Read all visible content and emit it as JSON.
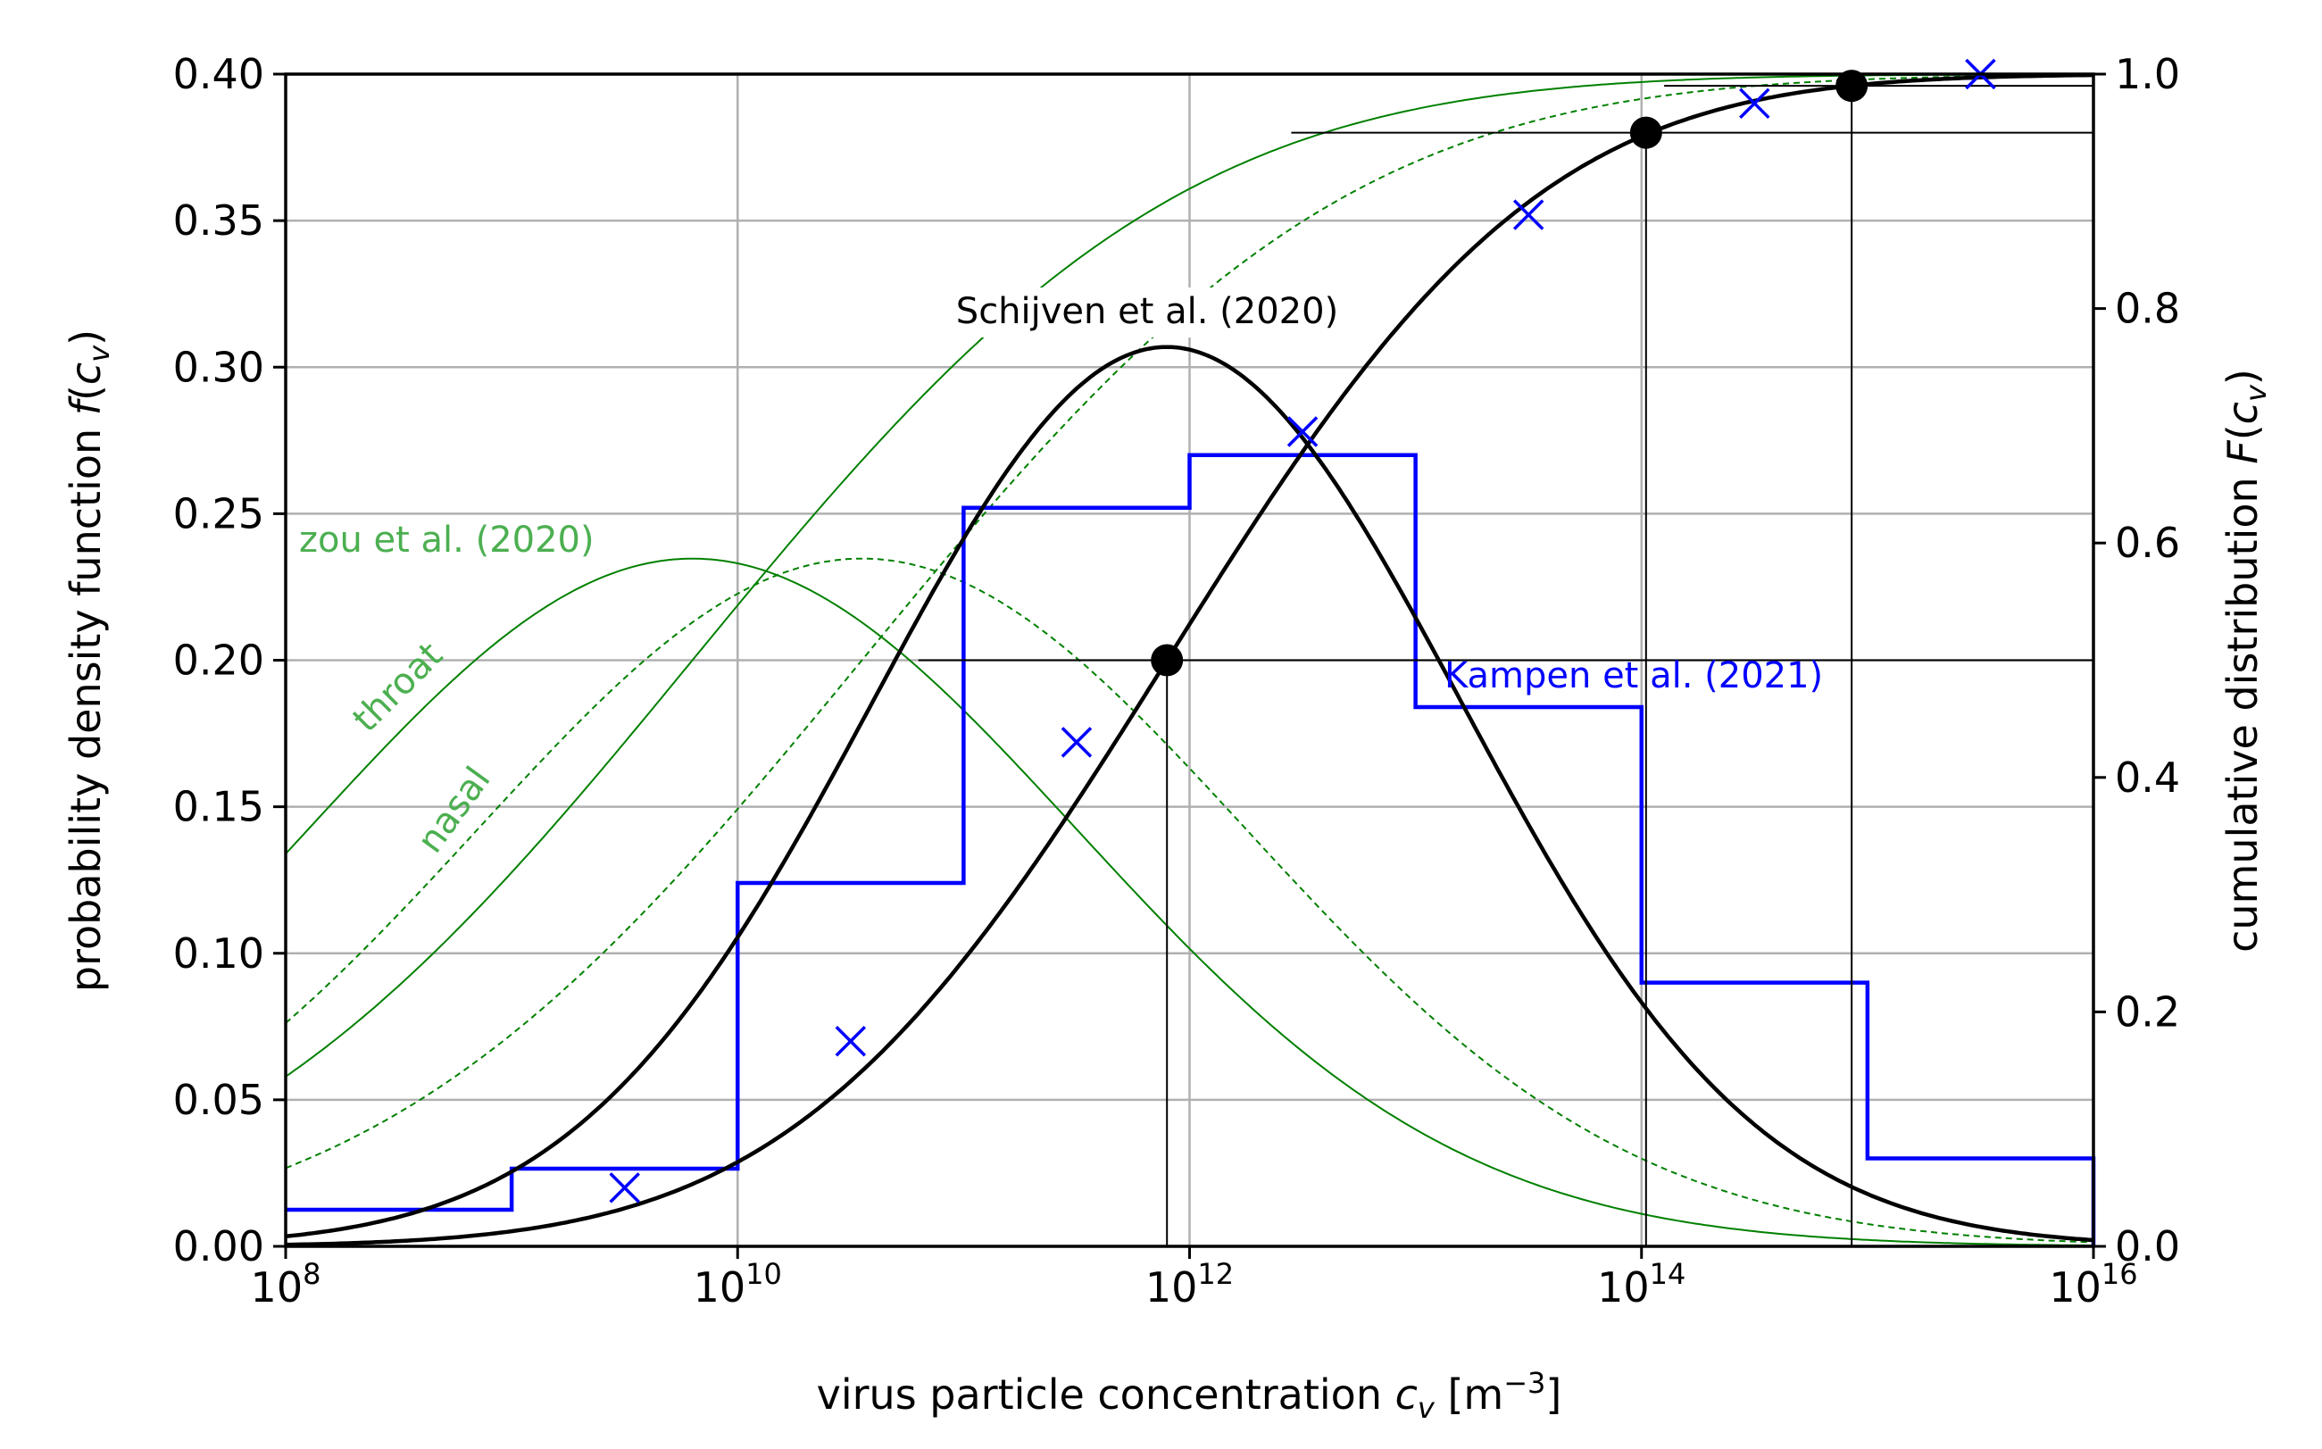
{
  "chart_data": {
    "type": "line",
    "xscale": "log10",
    "xlim_log10": [
      8,
      16
    ],
    "ylim_left": [
      0,
      0.4
    ],
    "ylim_right": [
      0,
      1.0
    ],
    "grid": true,
    "xlabel": "virus particle concentration",
    "xlabel_var": "c",
    "xlabel_sub": "v",
    "xlabel_unit_open": " [m",
    "xlabel_unit_exp": "−3",
    "xlabel_unit_close": "]",
    "ylabel_left": "probability density function ",
    "ylabel_left_var": "f",
    "ylabel_right": "cumulative distribution ",
    "ylabel_right_var": "F",
    "ylabel_arg_open": "(",
    "ylabel_arg_var": "c",
    "ylabel_arg_sub": "v",
    "ylabel_arg_close": ")",
    "x_ticks": [
      {
        "exp": 8,
        "base": "10",
        "sup": "8"
      },
      {
        "exp": 10,
        "base": "10",
        "sup": "10"
      },
      {
        "exp": 12,
        "base": "10",
        "sup": "12"
      },
      {
        "exp": 14,
        "base": "10",
        "sup": "14"
      },
      {
        "exp": 16,
        "base": "10",
        "sup": "16"
      }
    ],
    "y_left_ticks": [
      {
        "value": 0.0,
        "label": "0.00"
      },
      {
        "value": 0.05,
        "label": "0.05"
      },
      {
        "value": 0.1,
        "label": "0.10"
      },
      {
        "value": 0.15,
        "label": "0.15"
      },
      {
        "value": 0.2,
        "label": "0.20"
      },
      {
        "value": 0.25,
        "label": "0.25"
      },
      {
        "value": 0.3,
        "label": "0.30"
      },
      {
        "value": 0.35,
        "label": "0.35"
      },
      {
        "value": 0.4,
        "label": "0.40"
      }
    ],
    "y_right_ticks": [
      {
        "value": 0.0,
        "label": "0.0"
      },
      {
        "value": 0.2,
        "label": "0.2"
      },
      {
        "value": 0.4,
        "label": "0.4"
      },
      {
        "value": 0.6,
        "label": "0.6"
      },
      {
        "value": 0.8,
        "label": "0.8"
      },
      {
        "value": 1.0,
        "label": "1.0"
      }
    ],
    "schijven": {
      "label": "Schijven et al. (2020)",
      "mean_log10": 11.9,
      "sd_log10": 1.3,
      "color": "#000000",
      "cdf_points": [
        {
          "x_log10": 11.9,
          "F": 0.5
        },
        {
          "x_log10": 14.02,
          "F": 0.95
        },
        {
          "x_log10": 14.93,
          "F": 0.99
        }
      ]
    },
    "zou": {
      "label": "zou et al. (2020)",
      "color": "#008000",
      "label_color": "#4caf50",
      "series": [
        {
          "name": "throat",
          "mean_log10": 9.8,
          "sd_log10": 1.7,
          "style": "solid"
        },
        {
          "name": "nasal",
          "mean_log10": 10.55,
          "sd_log10": 1.7,
          "style": "dashed"
        }
      ]
    },
    "kampen": {
      "label": "Kampen et al. (2021)",
      "color": "#0000ff",
      "bins": [
        {
          "from": 8,
          "to": 9,
          "f": 0.0125
        },
        {
          "from": 9,
          "to": 10,
          "f": 0.0265
        },
        {
          "from": 10,
          "to": 11,
          "f": 0.124
        },
        {
          "from": 11,
          "to": 12,
          "f": 0.252
        },
        {
          "from": 12,
          "to": 13,
          "f": 0.27
        },
        {
          "from": 13,
          "to": 14,
          "f": 0.184
        },
        {
          "from": 14,
          "to": 15,
          "f": 0.09
        },
        {
          "from": 15,
          "to": 16,
          "f": 0.03
        }
      ],
      "cdf_points": [
        {
          "x_log10": 9.5,
          "F": 0.05
        },
        {
          "x_log10": 10.5,
          "F": 0.175
        },
        {
          "x_log10": 11.5,
          "F": 0.43
        },
        {
          "x_log10": 12.5,
          "F": 0.695
        },
        {
          "x_log10": 13.5,
          "F": 0.88
        },
        {
          "x_log10": 14.5,
          "F": 0.975
        },
        {
          "x_log10": 15.5,
          "F": 1.0
        }
      ]
    }
  }
}
